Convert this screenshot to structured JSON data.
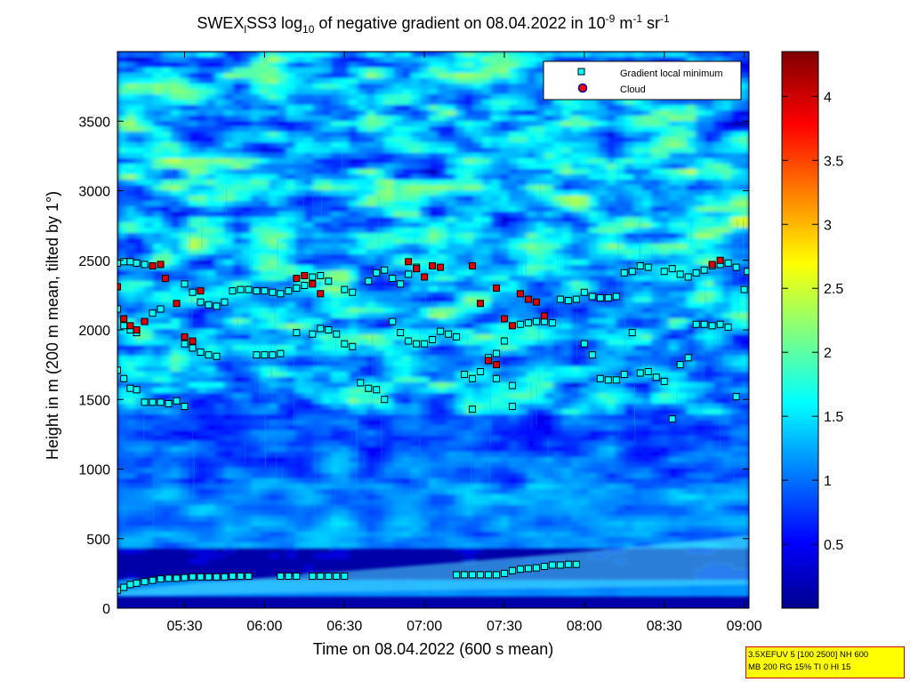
{
  "chart_data": {
    "type": "heatmap",
    "title": {
      "p1": "SWEX",
      "p1_sub": "l",
      "p2": "SS3 log",
      "p2_sub": "10",
      "p3": " of negative gradient on 08.04.2022 in 10",
      "exp1": "-9",
      "p4": " m",
      "exp2": "-1",
      "p5": " sr",
      "exp3": "-1"
    },
    "xlabel": "Time on 08.04.2022 (600 s mean)",
    "ylabel": "Height in m (200 m mean, tilted by 1°)",
    "x_ticks": [
      "05:30",
      "06:00",
      "06:30",
      "07:00",
      "07:30",
      "08:00",
      "08:30",
      "09:00"
    ],
    "x_tick_hours": [
      5.5,
      6.0,
      6.5,
      7.0,
      7.5,
      8.0,
      8.5,
      9.0
    ],
    "xlim": [
      5.08,
      9.03
    ],
    "y_ticks": [
      "0",
      "500",
      "1000",
      "1500",
      "2000",
      "2500",
      "3000",
      "3500"
    ],
    "y_tick_values": [
      0,
      500,
      1000,
      1500,
      2000,
      2500,
      3000,
      3500
    ],
    "ylim": [
      0,
      4000
    ],
    "colorbar": {
      "ticks": [
        "0.5",
        "1",
        "1.5",
        "2",
        "2.5",
        "3",
        "3.5",
        "4"
      ],
      "tick_values": [
        0.5,
        1.0,
        1.5,
        2.0,
        2.5,
        3.0,
        3.5,
        4.0
      ],
      "range": [
        0.0,
        4.35
      ],
      "colormap": "jet"
    },
    "legend": {
      "location": "top-right",
      "entries": [
        "Gradient local minimum",
        "Cloud"
      ],
      "colors": [
        "#00ffff",
        "#ff0000"
      ]
    },
    "series": [
      {
        "name": "Gradient local minimum",
        "points": [
          [
            5.08,
            130
          ],
          [
            5.12,
            150
          ],
          [
            5.16,
            170
          ],
          [
            5.2,
            180
          ],
          [
            5.25,
            190
          ],
          [
            5.3,
            200
          ],
          [
            5.35,
            210
          ],
          [
            5.4,
            215
          ],
          [
            5.45,
            215
          ],
          [
            5.5,
            220
          ],
          [
            5.55,
            225
          ],
          [
            5.6,
            225
          ],
          [
            5.65,
            225
          ],
          [
            5.7,
            225
          ],
          [
            5.75,
            225
          ],
          [
            5.8,
            230
          ],
          [
            5.85,
            230
          ],
          [
            5.9,
            230
          ],
          [
            6.1,
            230
          ],
          [
            6.15,
            230
          ],
          [
            6.2,
            230
          ],
          [
            6.3,
            230
          ],
          [
            6.35,
            230
          ],
          [
            6.4,
            230
          ],
          [
            6.45,
            230
          ],
          [
            6.5,
            230
          ],
          [
            7.2,
            240
          ],
          [
            7.25,
            240
          ],
          [
            7.3,
            240
          ],
          [
            7.35,
            240
          ],
          [
            7.4,
            240
          ],
          [
            7.45,
            240
          ],
          [
            7.5,
            250
          ],
          [
            7.55,
            270
          ],
          [
            7.6,
            280
          ],
          [
            7.65,
            285
          ],
          [
            7.7,
            290
          ],
          [
            7.75,
            300
          ],
          [
            7.8,
            310
          ],
          [
            7.85,
            310
          ],
          [
            7.9,
            315
          ],
          [
            7.95,
            315
          ],
          [
            5.08,
            1710
          ],
          [
            5.12,
            1650
          ],
          [
            5.16,
            1580
          ],
          [
            5.2,
            1570
          ],
          [
            5.25,
            1480
          ],
          [
            5.3,
            1480
          ],
          [
            5.35,
            1480
          ],
          [
            5.4,
            1470
          ],
          [
            5.45,
            1490
          ],
          [
            5.5,
            1450
          ],
          [
            5.08,
            2150
          ],
          [
            5.12,
            2030
          ],
          [
            5.16,
            2000
          ],
          [
            5.2,
            1980
          ],
          [
            5.3,
            2120
          ],
          [
            5.35,
            2150
          ],
          [
            5.5,
            1900
          ],
          [
            5.55,
            1870
          ],
          [
            5.6,
            1840
          ],
          [
            5.65,
            1820
          ],
          [
            5.7,
            1810
          ],
          [
            5.08,
            2480
          ],
          [
            5.12,
            2490
          ],
          [
            5.16,
            2490
          ],
          [
            5.2,
            2480
          ],
          [
            5.25,
            2470
          ],
          [
            5.5,
            2330
          ],
          [
            5.55,
            2270
          ],
          [
            5.6,
            2200
          ],
          [
            5.65,
            2180
          ],
          [
            5.7,
            2170
          ],
          [
            5.75,
            2200
          ],
          [
            5.8,
            2280
          ],
          [
            5.85,
            2290
          ],
          [
            5.9,
            2290
          ],
          [
            5.95,
            2280
          ],
          [
            6.0,
            2280
          ],
          [
            6.05,
            2270
          ],
          [
            6.1,
            2260
          ],
          [
            6.15,
            2280
          ],
          [
            6.2,
            2300
          ],
          [
            6.25,
            2320
          ],
          [
            6.3,
            2380
          ],
          [
            6.35,
            2390
          ],
          [
            6.4,
            2350
          ],
          [
            6.5,
            2290
          ],
          [
            6.55,
            2270
          ],
          [
            6.65,
            2350
          ],
          [
            6.7,
            2410
          ],
          [
            6.75,
            2430
          ],
          [
            6.8,
            2370
          ],
          [
            6.85,
            2330
          ],
          [
            6.9,
            2400
          ],
          [
            6.95,
            2450
          ],
          [
            5.95,
            1820
          ],
          [
            6.0,
            1820
          ],
          [
            6.05,
            1820
          ],
          [
            6.1,
            1830
          ],
          [
            6.2,
            1980
          ],
          [
            6.3,
            1970
          ],
          [
            6.35,
            2010
          ],
          [
            6.4,
            2000
          ],
          [
            6.45,
            1970
          ],
          [
            6.5,
            1900
          ],
          [
            6.55,
            1880
          ],
          [
            6.6,
            1620
          ],
          [
            6.65,
            1580
          ],
          [
            6.7,
            1570
          ],
          [
            6.75,
            1500
          ],
          [
            6.8,
            2060
          ],
          [
            6.85,
            1980
          ],
          [
            6.9,
            1920
          ],
          [
            6.95,
            1900
          ],
          [
            7.0,
            1900
          ],
          [
            7.05,
            1930
          ],
          [
            7.1,
            1990
          ],
          [
            7.15,
            1970
          ],
          [
            7.2,
            1950
          ],
          [
            7.25,
            1680
          ],
          [
            7.3,
            1650
          ],
          [
            7.35,
            1700
          ],
          [
            7.4,
            1800
          ],
          [
            7.45,
            1830
          ],
          [
            7.5,
            1920
          ],
          [
            7.55,
            1600
          ],
          [
            7.6,
            2040
          ],
          [
            7.65,
            2050
          ],
          [
            7.7,
            2060
          ],
          [
            7.75,
            2060
          ],
          [
            7.8,
            2050
          ],
          [
            7.85,
            2220
          ],
          [
            7.9,
            2210
          ],
          [
            7.95,
            2220
          ],
          [
            8.0,
            2270
          ],
          [
            8.05,
            2240
          ],
          [
            8.1,
            2230
          ],
          [
            8.15,
            2230
          ],
          [
            8.2,
            2240
          ],
          [
            8.25,
            2410
          ],
          [
            8.3,
            2420
          ],
          [
            8.35,
            2460
          ],
          [
            8.4,
            2450
          ],
          [
            8.5,
            2420
          ],
          [
            8.55,
            2440
          ],
          [
            8.6,
            2400
          ],
          [
            8.65,
            2380
          ],
          [
            8.7,
            2410
          ],
          [
            8.75,
            2430
          ],
          [
            8.8,
            2460
          ],
          [
            8.85,
            2470
          ],
          [
            8.9,
            2480
          ],
          [
            8.95,
            2450
          ],
          [
            9.0,
            2290
          ],
          [
            9.02,
            2420
          ],
          [
            8.0,
            1900
          ],
          [
            8.05,
            1820
          ],
          [
            8.1,
            1650
          ],
          [
            8.15,
            1640
          ],
          [
            8.2,
            1640
          ],
          [
            8.25,
            1680
          ],
          [
            8.3,
            1980
          ],
          [
            8.35,
            1690
          ],
          [
            8.4,
            1700
          ],
          [
            8.45,
            1660
          ],
          [
            8.5,
            1630
          ],
          [
            8.55,
            1360
          ],
          [
            8.6,
            1750
          ],
          [
            8.65,
            1800
          ],
          [
            8.7,
            2040
          ],
          [
            8.75,
            2040
          ],
          [
            8.8,
            2030
          ],
          [
            8.85,
            2040
          ],
          [
            8.9,
            2020
          ],
          [
            8.95,
            1520
          ],
          [
            7.3,
            1430
          ],
          [
            7.45,
            1650
          ],
          [
            7.55,
            1450
          ]
        ]
      },
      {
        "name": "Cloud",
        "points": [
          [
            5.08,
            2310
          ],
          [
            5.12,
            2080
          ],
          [
            5.16,
            2030
          ],
          [
            5.2,
            2000
          ],
          [
            5.25,
            2060
          ],
          [
            5.3,
            2460
          ],
          [
            5.35,
            2470
          ],
          [
            5.38,
            2370
          ],
          [
            5.45,
            2190
          ],
          [
            5.5,
            1950
          ],
          [
            5.55,
            1920
          ],
          [
            5.6,
            2280
          ],
          [
            6.2,
            2370
          ],
          [
            6.25,
            2390
          ],
          [
            6.3,
            2330
          ],
          [
            6.35,
            2260
          ],
          [
            6.9,
            2490
          ],
          [
            6.95,
            2440
          ],
          [
            7.0,
            2380
          ],
          [
            7.05,
            2460
          ],
          [
            7.1,
            2450
          ],
          [
            7.3,
            2460
          ],
          [
            7.35,
            2190
          ],
          [
            7.4,
            1780
          ],
          [
            7.45,
            1750
          ],
          [
            7.5,
            2080
          ],
          [
            7.55,
            2030
          ],
          [
            7.6,
            2260
          ],
          [
            7.65,
            2220
          ],
          [
            7.7,
            2200
          ],
          [
            7.75,
            2100
          ],
          [
            8.8,
            2470
          ],
          [
            8.85,
            2500
          ],
          [
            7.45,
            2300
          ]
        ]
      }
    ]
  },
  "info_box": {
    "line1": "3.5XEFUV 5 [100 2500] NH 600",
    "line2": "MB 200 RG 15% TI 0 HI 15"
  },
  "colors": {
    "background": "#ffffff",
    "axes_edge": "#000000",
    "marker_min_fill": "#00ffff",
    "marker_cloud_fill": "#ff0000",
    "cloud_marker_edge": "#0000aa",
    "info_box_fill": "#ffff00",
    "info_box_border": "#d00000"
  }
}
